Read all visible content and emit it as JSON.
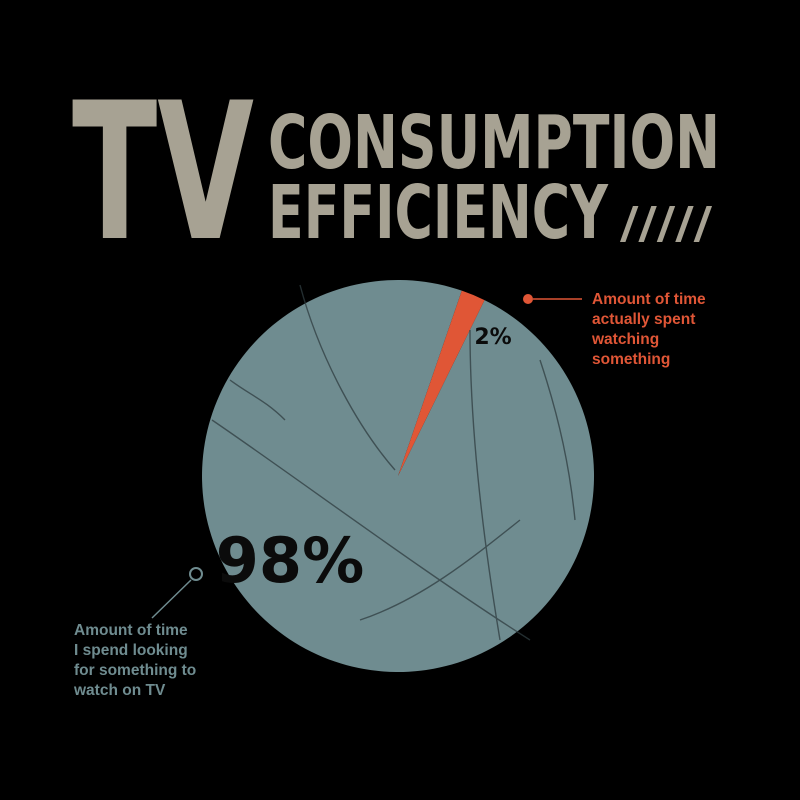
{
  "title": {
    "line_tv": "TV",
    "line_1": "CONSUMPTION",
    "line_2": "EFFICIENCY",
    "slashes": "/////"
  },
  "colors": {
    "background": "#000000",
    "title": "#a7a293",
    "main_slice": "#6f8c90",
    "accent_slice": "#e05636",
    "text_dark": "#0b0b0b",
    "scratch": "#2f3d40"
  },
  "chart_data": {
    "type": "pie",
    "slices": [
      {
        "label": "Amount of time actually spent watching something",
        "label_lines": [
          "Amount of time",
          "actually spent",
          "watching",
          "something"
        ],
        "value": 2,
        "value_label": "2%"
      },
      {
        "label": "Amount of time I spend looking for something to watch on TV",
        "label_lines": [
          "Amount of time",
          "I spend looking",
          "for something to",
          "watch on TV"
        ],
        "value": 98,
        "value_label": "98%"
      }
    ],
    "legend": "none"
  }
}
